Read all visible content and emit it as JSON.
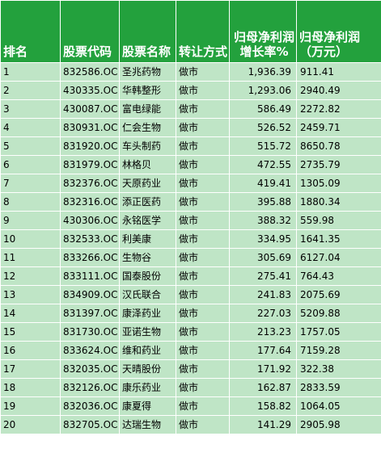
{
  "headers": [
    "排名",
    "股票代码",
    "股票名称",
    "转让方式",
    "归母净利润增长率%",
    "归母净利润（万元）"
  ],
  "rows": [
    [
      "1",
      "832586.OC",
      "圣兆药物",
      "做市",
      "1,936.39",
      "911.41"
    ],
    [
      "2",
      "430335.OC",
      "华韩整形",
      "做市",
      "1,293.06",
      "2940.49"
    ],
    [
      "3",
      "430087.OC",
      "富电绿能",
      "做市",
      "586.49",
      "2272.82"
    ],
    [
      "4",
      "830931.OC",
      "仁会生物",
      "做市",
      "526.52",
      "2459.71"
    ],
    [
      "5",
      "831920.OC",
      "车头制药",
      "做市",
      "515.72",
      "8650.78"
    ],
    [
      "6",
      "831979.OC",
      "林格贝",
      "做市",
      "472.55",
      "2735.79"
    ],
    [
      "7",
      "832376.OC",
      "天原药业",
      "做市",
      "419.41",
      "1305.09"
    ],
    [
      "8",
      "832316.OC",
      "添正医药",
      "做市",
      "395.88",
      "1880.34"
    ],
    [
      "9",
      "430306.OC",
      "永铭医学",
      "做市",
      "388.32",
      "559.98"
    ],
    [
      "10",
      "832533.OC",
      "利美康",
      "做市",
      "334.95",
      "1641.35"
    ],
    [
      "11",
      "833266.OC",
      "生物谷",
      "做市",
      "305.69",
      "6127.04"
    ],
    [
      "12",
      "833111.OC",
      "国泰股份",
      "做市",
      "275.41",
      "764.43"
    ],
    [
      "13",
      "834909.OC",
      "汉氏联合",
      "做市",
      "241.83",
      "2075.69"
    ],
    [
      "14",
      "831397.OC",
      "康泽药业",
      "做市",
      "227.03",
      "5209.88"
    ],
    [
      "15",
      "831730.OC",
      "亚诺生物",
      "做市",
      "213.23",
      "1757.05"
    ],
    [
      "16",
      "833624.OC",
      "维和药业",
      "做市",
      "177.64",
      "7159.28"
    ],
    [
      "17",
      "832035.OC",
      "天晴股份",
      "做市",
      "171.92",
      "322.38"
    ],
    [
      "18",
      "832126.OC",
      "康乐药业",
      "做市",
      "162.87",
      "2833.59"
    ],
    [
      "19",
      "832036.OC",
      "康夏得",
      "做市",
      "158.82",
      "1064.05"
    ],
    [
      "20",
      "832705.OC",
      "达瑞生物",
      "做市",
      "141.29",
      "2905.98"
    ]
  ],
  "colors": {
    "header_bg": "#23a13d",
    "row_bg": "#bfe5c6",
    "grid": "#ffffff"
  }
}
